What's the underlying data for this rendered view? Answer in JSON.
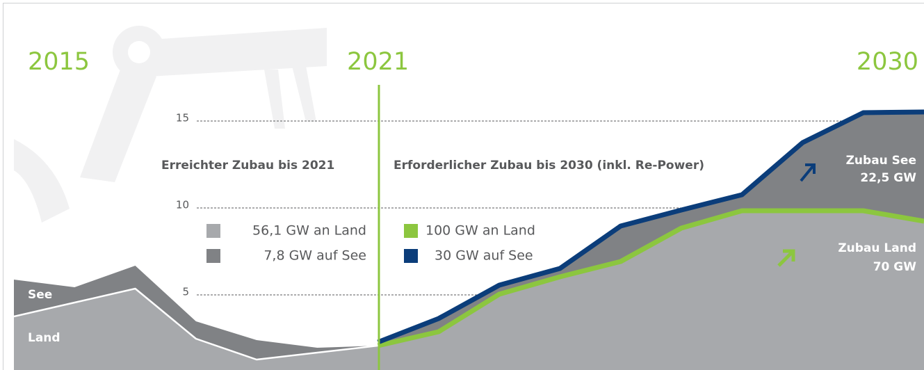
{
  "chart_data": {
    "type": "stacked-area",
    "annotations": [
      "Erreichter Zubau bis 2021",
      "Erforderlicher Zubau bis 2030 (inkl. Re-Power)",
      "See",
      "Land",
      "Zubau See",
      "22,5 GW",
      "Zubau Land",
      "70 GW"
    ],
    "x": [
      2015,
      2016,
      2017,
      2018,
      2019,
      2020,
      2021,
      2022,
      2023,
      2024,
      2025,
      2026,
      2027,
      2028,
      2029,
      2030
    ],
    "xlim": [
      2015,
      2030
    ],
    "xticks": [
      2015,
      2021,
      2030
    ],
    "ylim": [
      1,
      20
    ],
    "yticks": [
      5,
      10,
      15
    ],
    "grid": true,
    "series": [
      {
        "name": "56,1 GW an Land",
        "color": "#a7a9ac",
        "line": "#ffffff",
        "values": [
          3.76,
          4.56,
          5.36,
          2.48,
          1.28,
          1.68,
          2.08,
          null,
          null,
          null,
          null,
          null,
          null,
          null,
          null,
          null
        ]
      },
      {
        "name": "7,8 GW auf See",
        "color": "#808285",
        "values": [
          2.12,
          0.88,
          1.32,
          1.0,
          1.12,
          0.28,
          0,
          null,
          null,
          null,
          null,
          null,
          null,
          null,
          null,
          null
        ]
      },
      {
        "name": "100 GW an Land",
        "color": "#8cc63f",
        "fill": "#a7a9ac",
        "values": [
          null,
          null,
          null,
          null,
          null,
          null,
          2.08,
          2.88,
          5.04,
          6.04,
          6.92,
          8.84,
          9.84,
          9.84,
          9.84,
          9.24
        ]
      },
      {
        "name": "30 GW auf See",
        "color": "#0b3d7a",
        "fill": "#808285",
        "values": [
          null,
          null,
          null,
          null,
          null,
          null,
          0.2,
          0.76,
          0.52,
          0.48,
          2.04,
          1.04,
          0.92,
          3.92,
          5.64,
          6.28
        ]
      }
    ]
  }
}
